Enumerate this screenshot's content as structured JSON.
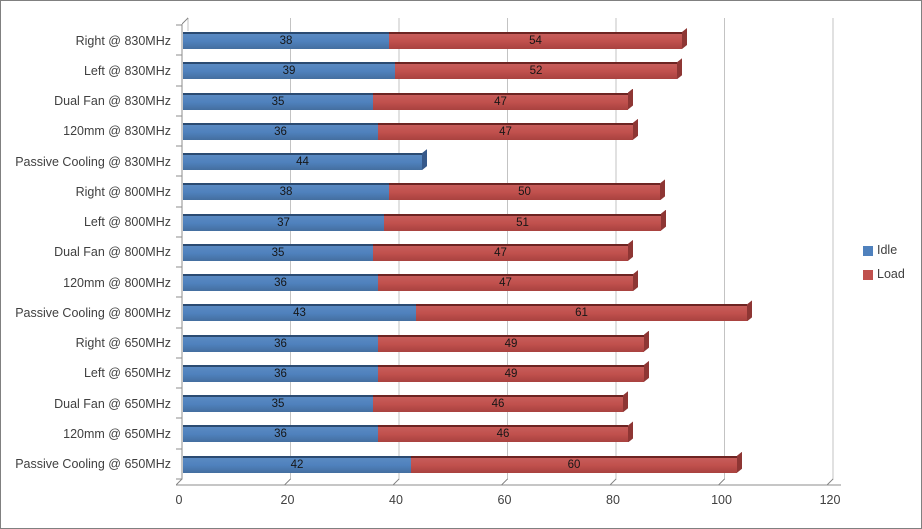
{
  "chart_data": {
    "type": "bar",
    "orientation": "horizontal",
    "stacked": true,
    "title": "",
    "xlabel": "",
    "ylabel": "",
    "xlim": [
      0,
      120
    ],
    "xticks": [
      0,
      20,
      40,
      60,
      80,
      100,
      120
    ],
    "grid": true,
    "legend_position": "right",
    "categories": [
      "Right @ 830MHz",
      "Left @ 830MHz",
      "Dual Fan @ 830MHz",
      "120mm @ 830MHz",
      "Passive Cooling @ 830MHz",
      "Right @ 800MHz",
      "Left @ 800MHz",
      "Dual Fan @ 800MHz",
      "120mm @ 800MHz",
      "Passive Cooling @ 800MHz",
      "Right @ 650MHz",
      "Left @ 650MHz",
      "Dual Fan @ 650MHz",
      "120mm @ 650MHz",
      "Passive Cooling @ 650MHz"
    ],
    "series": [
      {
        "name": "Idle",
        "color": "#4F81BD",
        "values": [
          38,
          39,
          35,
          36,
          44,
          38,
          37,
          35,
          36,
          43,
          36,
          36,
          35,
          36,
          42
        ]
      },
      {
        "name": "Load",
        "color": "#C0504D",
        "values": [
          54,
          52,
          47,
          47,
          null,
          50,
          51,
          47,
          47,
          61,
          49,
          49,
          46,
          46,
          60
        ]
      }
    ]
  },
  "legend": {
    "items": [
      {
        "label": "Idle",
        "color": "#4F81BD"
      },
      {
        "label": "Load",
        "color": "#C0504D"
      }
    ]
  },
  "colors": {
    "grid_line": "#C3C3C3",
    "axis_line": "#8C8C8C",
    "frame_border": "#808080",
    "idle_cap": "#36598A",
    "load_cap": "#8E3634",
    "label_text": "#404040",
    "value_text": "#161616"
  }
}
